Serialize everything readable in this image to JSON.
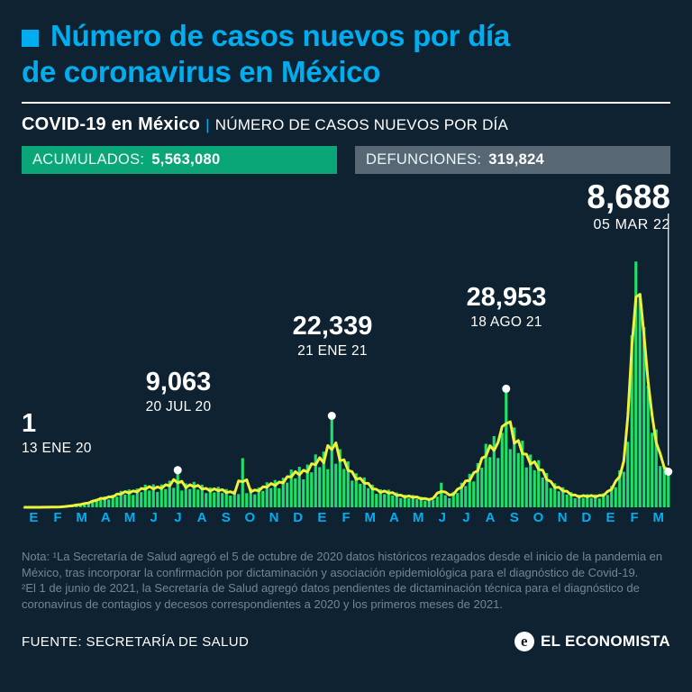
{
  "title": {
    "line1": "Número de casos nuevos por día",
    "line2": "de coronavirus en México"
  },
  "subheader": {
    "bold": "COVID-19 en México",
    "separator": "|",
    "rest": "NÚMERO DE CASOS NUEVOS POR DÍA"
  },
  "badges": {
    "acumulados": {
      "label": "ACUMULADOS:",
      "value": "5,563,080"
    },
    "defunciones": {
      "label": "DEFUNCIONES:",
      "value": "319,824"
    }
  },
  "chart_data": {
    "type": "bar",
    "title": "Número de casos nuevos por día de coronavirus en México",
    "x_start": "13 ENE 20",
    "x_end": "05 MAR 22",
    "ylim": [
      0,
      66000
    ],
    "grid": false,
    "legend": false,
    "month_labels": [
      "E",
      "F",
      "M",
      "A",
      "M",
      "J",
      "J",
      "A",
      "S",
      "O",
      "N",
      "D",
      "E",
      "F",
      "M",
      "A",
      "M",
      "J",
      "J",
      "A",
      "S",
      "O",
      "N",
      "D",
      "E",
      "F",
      "M"
    ],
    "values": [
      1,
      1,
      3,
      3,
      7,
      8,
      20,
      25,
      57,
      62,
      162,
      210,
      450,
      468,
      808,
      682,
      1260,
      1225,
      2100,
      1764,
      2660,
      1922,
      3060,
      2590,
      4000,
      3096,
      4370,
      3007,
      4590,
      3710,
      5500,
      4104,
      5605,
      3751,
      5580,
      4445,
      6500,
      4752,
      9063,
      4092,
      5850,
      4445,
      6200,
      4320,
      5510,
      3472,
      4860,
      3640,
      5000,
      3492,
      4465,
      2852,
      4095,
      3220,
      12000,
      3456,
      4655,
      3162,
      4860,
      3990,
      6100,
      4680,
      6650,
      4650,
      7200,
      6020,
      9200,
      7056,
      9880,
      6820,
      10440,
      8540,
      12900,
      9792,
      13585,
      9300,
      22339,
      10640,
      14200,
      9360,
      11210,
      6510,
      8280,
      5740,
      7300,
      4680,
      5510,
      3286,
      4410,
      3220,
      4300,
      2880,
      3610,
      2232,
      3060,
      2240,
      3000,
      2016,
      2565,
      1612,
      2250,
      1750,
      2600,
      6000,
      2945,
      2232,
      3780,
      3500,
      6000,
      5184,
      8170,
      6324,
      10800,
      9660,
      15500,
      12240,
      17385,
      12028,
      18180,
      28953,
      14210,
      19500,
      13248,
      16245,
      9734,
      12870,
      9030,
      11500,
      7272,
      8360,
      4712,
      5850,
      3920,
      4900,
      3096,
      3705,
      2232,
      3060,
      2310,
      3200,
      2304,
      3135,
      2170,
      3420,
      3010,
      5200,
      4896,
      9025,
      8680,
      16000,
      42000,
      60000,
      52000,
      44000,
      29700,
      18200,
      19000,
      10080,
      9975,
      8688
    ],
    "annotations": [
      {
        "label": "1",
        "date": "13 ENE 20",
        "index": 0,
        "value": 1,
        "dot": false,
        "drop_line": false
      },
      {
        "label": "9,063",
        "date": "20 JUL 20",
        "index": 38,
        "value": 9063,
        "dot": true,
        "drop_line": false
      },
      {
        "label": "22,339",
        "date": "21 ENE 21",
        "index": 76,
        "value": 22339,
        "dot": true,
        "drop_line": false
      },
      {
        "label": "28,953",
        "date": "18 AGO 21",
        "index": 119,
        "value": 28953,
        "dot": true,
        "drop_line": false
      },
      {
        "label": "8,688",
        "date": "05 MAR 22",
        "index": 159,
        "value": 8688,
        "dot": true,
        "drop_line": true
      }
    ],
    "colors": {
      "bars": "#1fe06b",
      "line": "#eef23d",
      "dots": "#ffffff",
      "axis_labels": "#00aeef",
      "accent": "#00aeef",
      "badge_green": "#0ba678",
      "badge_gray": "#576874",
      "background": "#0e2231"
    }
  },
  "footnote": {
    "lines": [
      "Nota: ¹La Secretaría de Salud agregó el 5 de octubre de 2020 datos históricos rezagados desde el inicio de la pandemia en",
      "México, tras incorporar la confirmación por dictaminación y asociación epidemiológica para el diagnóstico de Covid-19.",
      "²El 1 de junio de 2021, la Secretaría de Salud agregó datos pendientes de dictaminación técnica para el diagnóstico de",
      "coronavirus de contagios y decesos correspondientes a 2020 y los primeros meses de 2021."
    ]
  },
  "footer": {
    "source": "FUENTE: SECRETARÍA DE SALUD",
    "brand": "EL ECONOMISTA",
    "logo_glyph": "e"
  }
}
